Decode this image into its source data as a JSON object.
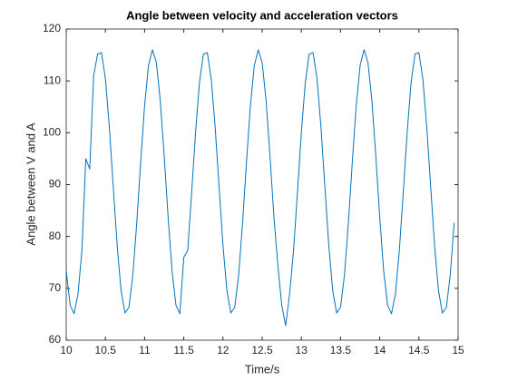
{
  "chart_data": {
    "type": "line",
    "title": "Angle between velocity and acceleration vectors",
    "xlabel": "Time/s",
    "ylabel": "Angle between V and A",
    "xlim": [
      10,
      15
    ],
    "xticks": [
      10,
      10.5,
      11,
      11.5,
      12,
      12.5,
      13,
      13.5,
      14,
      14.5,
      15
    ],
    "ylim": [
      60,
      120
    ],
    "yticks": [
      60,
      70,
      80,
      90,
      100,
      110,
      120
    ],
    "grid": false,
    "series": [
      {
        "name": "angle",
        "color": "#0072bd",
        "x": [
          10,
          10.05,
          10.1,
          10.15,
          10.2,
          10.25,
          10.3,
          10.35,
          10.4,
          10.45,
          10.5,
          10.55,
          10.6,
          10.65,
          10.7,
          10.75,
          10.8,
          10.85,
          10.9,
          10.95,
          11,
          11.05,
          11.1,
          11.15,
          11.2,
          11.25,
          11.3,
          11.35,
          11.4,
          11.45,
          11.5,
          11.55,
          11.6,
          11.65,
          11.7,
          11.75,
          11.8,
          11.85,
          11.9,
          11.95,
          12,
          12.05,
          12.1,
          12.15,
          12.2,
          12.25,
          12.3,
          12.35,
          12.4,
          12.45,
          12.5,
          12.55,
          12.6,
          12.65,
          12.7,
          12.75,
          12.8,
          12.85,
          12.9,
          12.95,
          13,
          13.05,
          13.1,
          13.15,
          13.2,
          13.25,
          13.3,
          13.35,
          13.4,
          13.45,
          13.5,
          13.55,
          13.6,
          13.65,
          13.7,
          13.75,
          13.8,
          13.85,
          13.9,
          13.95,
          14,
          14.05,
          14.1,
          14.15,
          14.2,
          14.25,
          14.3,
          14.35,
          14.4,
          14.45,
          14.5,
          14.55,
          14.6,
          14.65,
          14.7,
          14.75,
          14.8,
          14.85,
          14.9,
          14.95
        ],
        "values": [
          73.4,
          66.75,
          65.11,
          68.88,
          77.24,
          95,
          93,
          111,
          115.17,
          115.44,
          110.41,
          101.14,
          89.61,
          78.27,
          69.53,
          65.25,
          66.34,
          72.57,
          82.62,
          94.34,
          105.24,
          113.01,
          115.99,
          113.55,
          106.2,
          95.51,
          83.76,
          73.4,
          66.75,
          65.11,
          76,
          77.24,
          88.42,
          100.05,
          109.65,
          115.17,
          115.44,
          110.41,
          101.14,
          89.61,
          78.27,
          69.53,
          65.25,
          66.34,
          72.57,
          82.62,
          94.34,
          105.24,
          113.01,
          115.99,
          113.55,
          106.2,
          95.51,
          83.76,
          74.5,
          66.75,
          62.8,
          68.88,
          77.24,
          88.42,
          100.05,
          109.65,
          115.17,
          115.44,
          110.41,
          101.14,
          89.61,
          78.27,
          69.53,
          65.25,
          66.34,
          72.57,
          82.62,
          94.34,
          105.24,
          113.01,
          115.99,
          113.55,
          106.2,
          95.51,
          83.76,
          73.4,
          66.75,
          65.11,
          68.88,
          77.24,
          88.42,
          100.05,
          109.65,
          115.17,
          115.44,
          110.41,
          101.14,
          89.61,
          78.27,
          69.53,
          65.25,
          66.34,
          72.57,
          82.62
        ]
      }
    ]
  }
}
